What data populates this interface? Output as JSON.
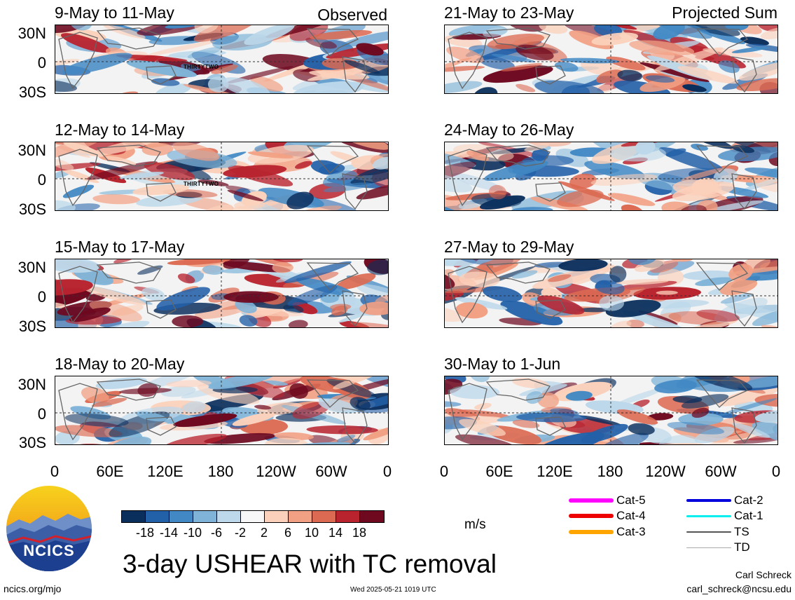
{
  "panels": {
    "p0": {
      "title": "9-May to 11-May",
      "tag": "Observed",
      "storm": "THIRTYTWO"
    },
    "p1": {
      "title": "12-May to 14-May",
      "storm": "THIRTYTWO"
    },
    "p2": {
      "title": "15-May to 17-May"
    },
    "p3": {
      "title": "18-May to 20-May"
    },
    "p4": {
      "title": "21-May to 23-May",
      "tag": "Projected Sum"
    },
    "p5": {
      "title": "24-May to 26-May"
    },
    "p6": {
      "title": "27-May to 29-May"
    },
    "p7": {
      "title": "30-May to 1-Jun"
    }
  },
  "lat_labels": {
    "n30": "30N",
    "eq": "0",
    "s30": "30S"
  },
  "lon_labels": {
    "l0": "0",
    "l60e": "60E",
    "l120e": "120E",
    "l180": "180",
    "l120w": "120W",
    "l60w": "60W",
    "l0b": "0"
  },
  "colorbar": {
    "colors": [
      "#0b2f5d",
      "#2260a8",
      "#4188c4",
      "#7fb4d8",
      "#bcd8ea",
      "#f7f7f7",
      "#fbd1bb",
      "#f2a083",
      "#dc6a52",
      "#b8232e",
      "#6e0920"
    ],
    "ticks": [
      "-18",
      "-14",
      "-10",
      "-6",
      "-2",
      "2",
      "6",
      "10",
      "14",
      "18"
    ],
    "units": "m/s"
  },
  "title": "3-day USHEAR with TC removal",
  "legend": {
    "cat5": {
      "label": "Cat-5",
      "color": "#ff00ff"
    },
    "cat4": {
      "label": "Cat-4",
      "color": "#ee0000"
    },
    "cat3": {
      "label": "Cat-3",
      "color": "#ffa500"
    },
    "cat2": {
      "label": "Cat-2",
      "color": "#0000dd"
    },
    "cat1": {
      "label": "Cat-1",
      "color": "#00eeee"
    },
    "ts": {
      "label": "TS",
      "color": "#555555"
    },
    "td": {
      "label": "TD",
      "color": "#aaaaaa"
    }
  },
  "logo": {
    "text": "NCICS"
  },
  "footer": {
    "url": "ncics.org/mjo",
    "timestamp": "Wed 2025-05-21 1019 UTC",
    "author": "Carl Schreck",
    "email": "carl_schreck@ncsu.edu"
  }
}
